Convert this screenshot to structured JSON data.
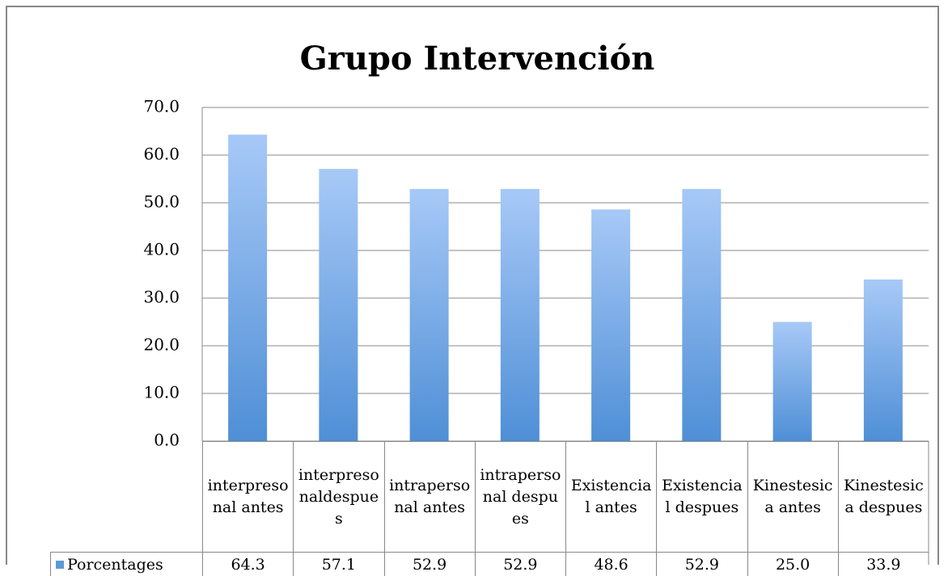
{
  "chart_data": {
    "type": "bar",
    "title": "Grupo Intervención",
    "categories": [
      "interpresonal antes",
      "interpresonaldespues",
      "intrapersonal antes",
      "intrapersonal despues",
      "Existencial antes",
      "Existencial despues",
      "Kinestesica antes",
      "Kinestesica despues"
    ],
    "series": [
      {
        "name": "Porcentages",
        "color": "#5b9bd5",
        "values": [
          64.3,
          57.1,
          52.9,
          52.9,
          48.6,
          52.9,
          25.0,
          33.9
        ],
        "value_labels": [
          "64.3",
          "57.1",
          "52.9",
          "52.9",
          "48.6",
          "52.9",
          "25.0",
          "33.9"
        ]
      }
    ],
    "ylim": [
      0,
      70
    ],
    "yticks": [
      {
        "value": 0,
        "label": "0.0"
      },
      {
        "value": 10,
        "label": "10.0"
      },
      {
        "value": 20,
        "label": "20.0"
      },
      {
        "value": 30,
        "label": "30.0"
      },
      {
        "value": 40,
        "label": "40.0"
      },
      {
        "value": 50,
        "label": "50.0"
      },
      {
        "value": 60,
        "label": "60.0"
      },
      {
        "value": 70,
        "label": "70.0"
      }
    ],
    "grid": true
  }
}
